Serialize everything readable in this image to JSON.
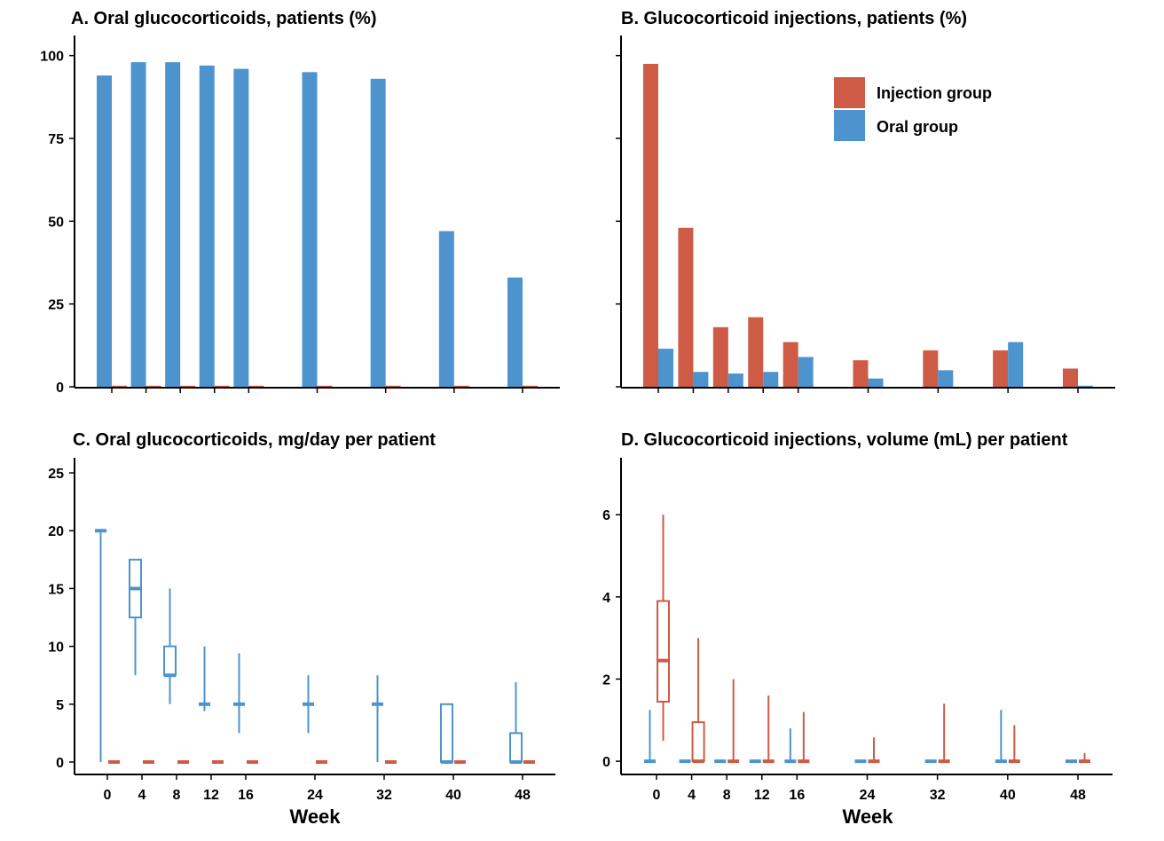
{
  "colors": {
    "injection": "#CD5B45",
    "oral": "#4D94CF"
  },
  "legend": [
    {
      "key": "injection",
      "label": "Injection group"
    },
    {
      "key": "oral",
      "label": "Oral group"
    }
  ],
  "xlabel": "Week",
  "chart_data": [
    {
      "panel": "A",
      "type": "bar",
      "title": "A. Oral glucocorticoids, patients (%)",
      "x": [
        0,
        4,
        8,
        12,
        16,
        24,
        32,
        40,
        48
      ],
      "ylim": [
        0,
        105
      ],
      "yticks": [
        0,
        25,
        50,
        75,
        100
      ],
      "show_ytick_labels": true,
      "show_xtick_labels": false,
      "series": [
        {
          "key": "oral",
          "values": [
            94,
            98,
            98,
            97,
            96,
            95,
            93,
            47,
            33
          ]
        },
        {
          "key": "injection",
          "values": [
            0,
            0,
            0,
            0,
            0,
            0,
            0,
            0,
            0
          ]
        }
      ],
      "grid": false
    },
    {
      "panel": "B",
      "type": "bar",
      "title": "B. Glucocorticoid injections, patients (%)",
      "x": [
        0,
        4,
        8,
        12,
        16,
        24,
        32,
        40,
        48
      ],
      "ylim": [
        0,
        105
      ],
      "yticks": [
        0,
        25,
        50,
        75,
        100
      ],
      "show_ytick_labels": false,
      "show_xtick_labels": false,
      "series": [
        {
          "key": "injection",
          "values": [
            97.5,
            48,
            18,
            21,
            13.5,
            8,
            11,
            11,
            5.5
          ]
        },
        {
          "key": "oral",
          "values": [
            11.5,
            4.5,
            4,
            4.5,
            9,
            2.5,
            5,
            13.5,
            0.3
          ]
        }
      ],
      "legend_position": "top-right",
      "grid": false
    },
    {
      "panel": "C",
      "type": "box",
      "title": "C. Oral glucocorticoids, mg/day per patient",
      "x": [
        0,
        4,
        8,
        12,
        16,
        24,
        32,
        40,
        48
      ],
      "ylim": [
        -1,
        26
      ],
      "yticks": [
        0,
        5,
        10,
        15,
        20,
        25
      ],
      "show_ytick_labels": true,
      "show_xtick_labels": true,
      "series": [
        {
          "key": "oral",
          "boxes": [
            {
              "lo": 0,
              "q1": 20,
              "med": 20,
              "q3": 20,
              "hi": 20
            },
            {
              "lo": 7.5,
              "q1": 12.5,
              "med": 15,
              "q3": 17.5,
              "hi": 17.5
            },
            {
              "lo": 5,
              "q1": 7.5,
              "med": 7.5,
              "q3": 10,
              "hi": 15
            },
            {
              "lo": 4.4,
              "q1": 5,
              "med": 5,
              "q3": 5,
              "hi": 10
            },
            {
              "lo": 2.5,
              "q1": 5,
              "med": 5,
              "q3": 5,
              "hi": 9.4
            },
            {
              "lo": 2.5,
              "q1": 5,
              "med": 5,
              "q3": 5,
              "hi": 7.5
            },
            {
              "lo": 0,
              "q1": 5,
              "med": 5,
              "q3": 5,
              "hi": 7.5
            },
            {
              "lo": 0,
              "q1": 0,
              "med": 0,
              "q3": 5,
              "hi": 5
            },
            {
              "lo": 0,
              "q1": 0,
              "med": 0,
              "q3": 2.5,
              "hi": 6.9
            }
          ]
        },
        {
          "key": "injection",
          "boxes": [
            {
              "lo": 0,
              "q1": 0,
              "med": 0,
              "q3": 0,
              "hi": 0
            },
            {
              "lo": 0,
              "q1": 0,
              "med": 0,
              "q3": 0,
              "hi": 0
            },
            {
              "lo": 0,
              "q1": 0,
              "med": 0,
              "q3": 0,
              "hi": 0
            },
            {
              "lo": 0,
              "q1": 0,
              "med": 0,
              "q3": 0,
              "hi": 0
            },
            {
              "lo": 0,
              "q1": 0,
              "med": 0,
              "q3": 0,
              "hi": 0
            },
            {
              "lo": 0,
              "q1": 0,
              "med": 0,
              "q3": 0,
              "hi": 0
            },
            {
              "lo": 0,
              "q1": 0,
              "med": 0,
              "q3": 0,
              "hi": 0
            },
            {
              "lo": 0,
              "q1": 0,
              "med": 0,
              "q3": 0,
              "hi": 0
            },
            {
              "lo": 0,
              "q1": 0,
              "med": 0,
              "q3": 0,
              "hi": 0
            }
          ]
        }
      ],
      "grid": false
    },
    {
      "panel": "D",
      "type": "box",
      "title": "D. Glucocorticoid injections, volume (mL) per patient",
      "x": [
        0,
        4,
        8,
        12,
        16,
        24,
        32,
        40,
        48
      ],
      "ylim": [
        -0.3,
        7.3
      ],
      "yticks": [
        0,
        2,
        4,
        6
      ],
      "show_ytick_labels": true,
      "show_xtick_labels": true,
      "series": [
        {
          "key": "oral",
          "boxes": [
            {
              "lo": 0,
              "q1": 0,
              "med": 0,
              "q3": 0,
              "hi": 1.25
            },
            {
              "lo": 0,
              "q1": 0,
              "med": 0,
              "q3": 0,
              "hi": 0
            },
            {
              "lo": 0,
              "q1": 0,
              "med": 0,
              "q3": 0,
              "hi": 0
            },
            {
              "lo": 0,
              "q1": 0,
              "med": 0,
              "q3": 0,
              "hi": 0
            },
            {
              "lo": 0,
              "q1": 0,
              "med": 0,
              "q3": 0,
              "hi": 0.8
            },
            {
              "lo": 0,
              "q1": 0,
              "med": 0,
              "q3": 0,
              "hi": 0
            },
            {
              "lo": 0,
              "q1": 0,
              "med": 0,
              "q3": 0,
              "hi": 0
            },
            {
              "lo": 0,
              "q1": 0,
              "med": 0,
              "q3": 0,
              "hi": 1.25
            },
            {
              "lo": 0,
              "q1": 0,
              "med": 0,
              "q3": 0,
              "hi": 0
            }
          ]
        },
        {
          "key": "injection",
          "boxes": [
            {
              "lo": 0.5,
              "q1": 1.45,
              "med": 2.45,
              "q3": 3.9,
              "hi": 6
            },
            {
              "lo": 0,
              "q1": 0,
              "med": 0,
              "q3": 0.95,
              "hi": 3
            },
            {
              "lo": 0,
              "q1": 0,
              "med": 0,
              "q3": 0,
              "hi": 2
            },
            {
              "lo": 0,
              "q1": 0,
              "med": 0,
              "q3": 0,
              "hi": 1.6
            },
            {
              "lo": 0,
              "q1": 0,
              "med": 0,
              "q3": 0,
              "hi": 1.2
            },
            {
              "lo": 0,
              "q1": 0,
              "med": 0,
              "q3": 0,
              "hi": 0.58
            },
            {
              "lo": 0,
              "q1": 0,
              "med": 0,
              "q3": 0,
              "hi": 1.4
            },
            {
              "lo": 0,
              "q1": 0,
              "med": 0,
              "q3": 0,
              "hi": 0.88
            },
            {
              "lo": 0,
              "q1": 0,
              "med": 0,
              "q3": 0,
              "hi": 0.2
            }
          ]
        }
      ],
      "grid": false
    }
  ]
}
